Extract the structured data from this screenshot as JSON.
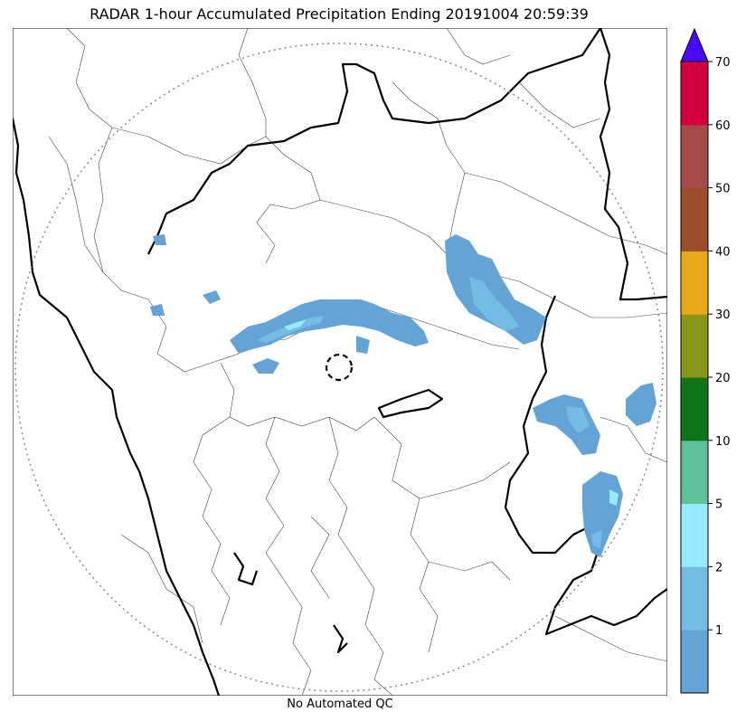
{
  "title": "RADAR 1-hour Accumulated Precipitation Ending 20191004 20:59:39",
  "footer": "No Automated QC",
  "colorbar": {
    "ticks": [
      "1",
      "2",
      "5",
      "10",
      "20",
      "30",
      "40",
      "50",
      "60",
      "70"
    ],
    "colors": [
      "#64a3d6",
      "#74bce4",
      "#96ecfe",
      "#5ec19a",
      "#0f7319",
      "#8a9617",
      "#e7a919",
      "#9b4e2a",
      "#a54a46",
      "#d3003e"
    ],
    "over_color": "#4b08ff"
  },
  "precip_colors": {
    "light": "#64a3d6",
    "mid": "#74bce4",
    "high": "#96ecfe"
  }
}
